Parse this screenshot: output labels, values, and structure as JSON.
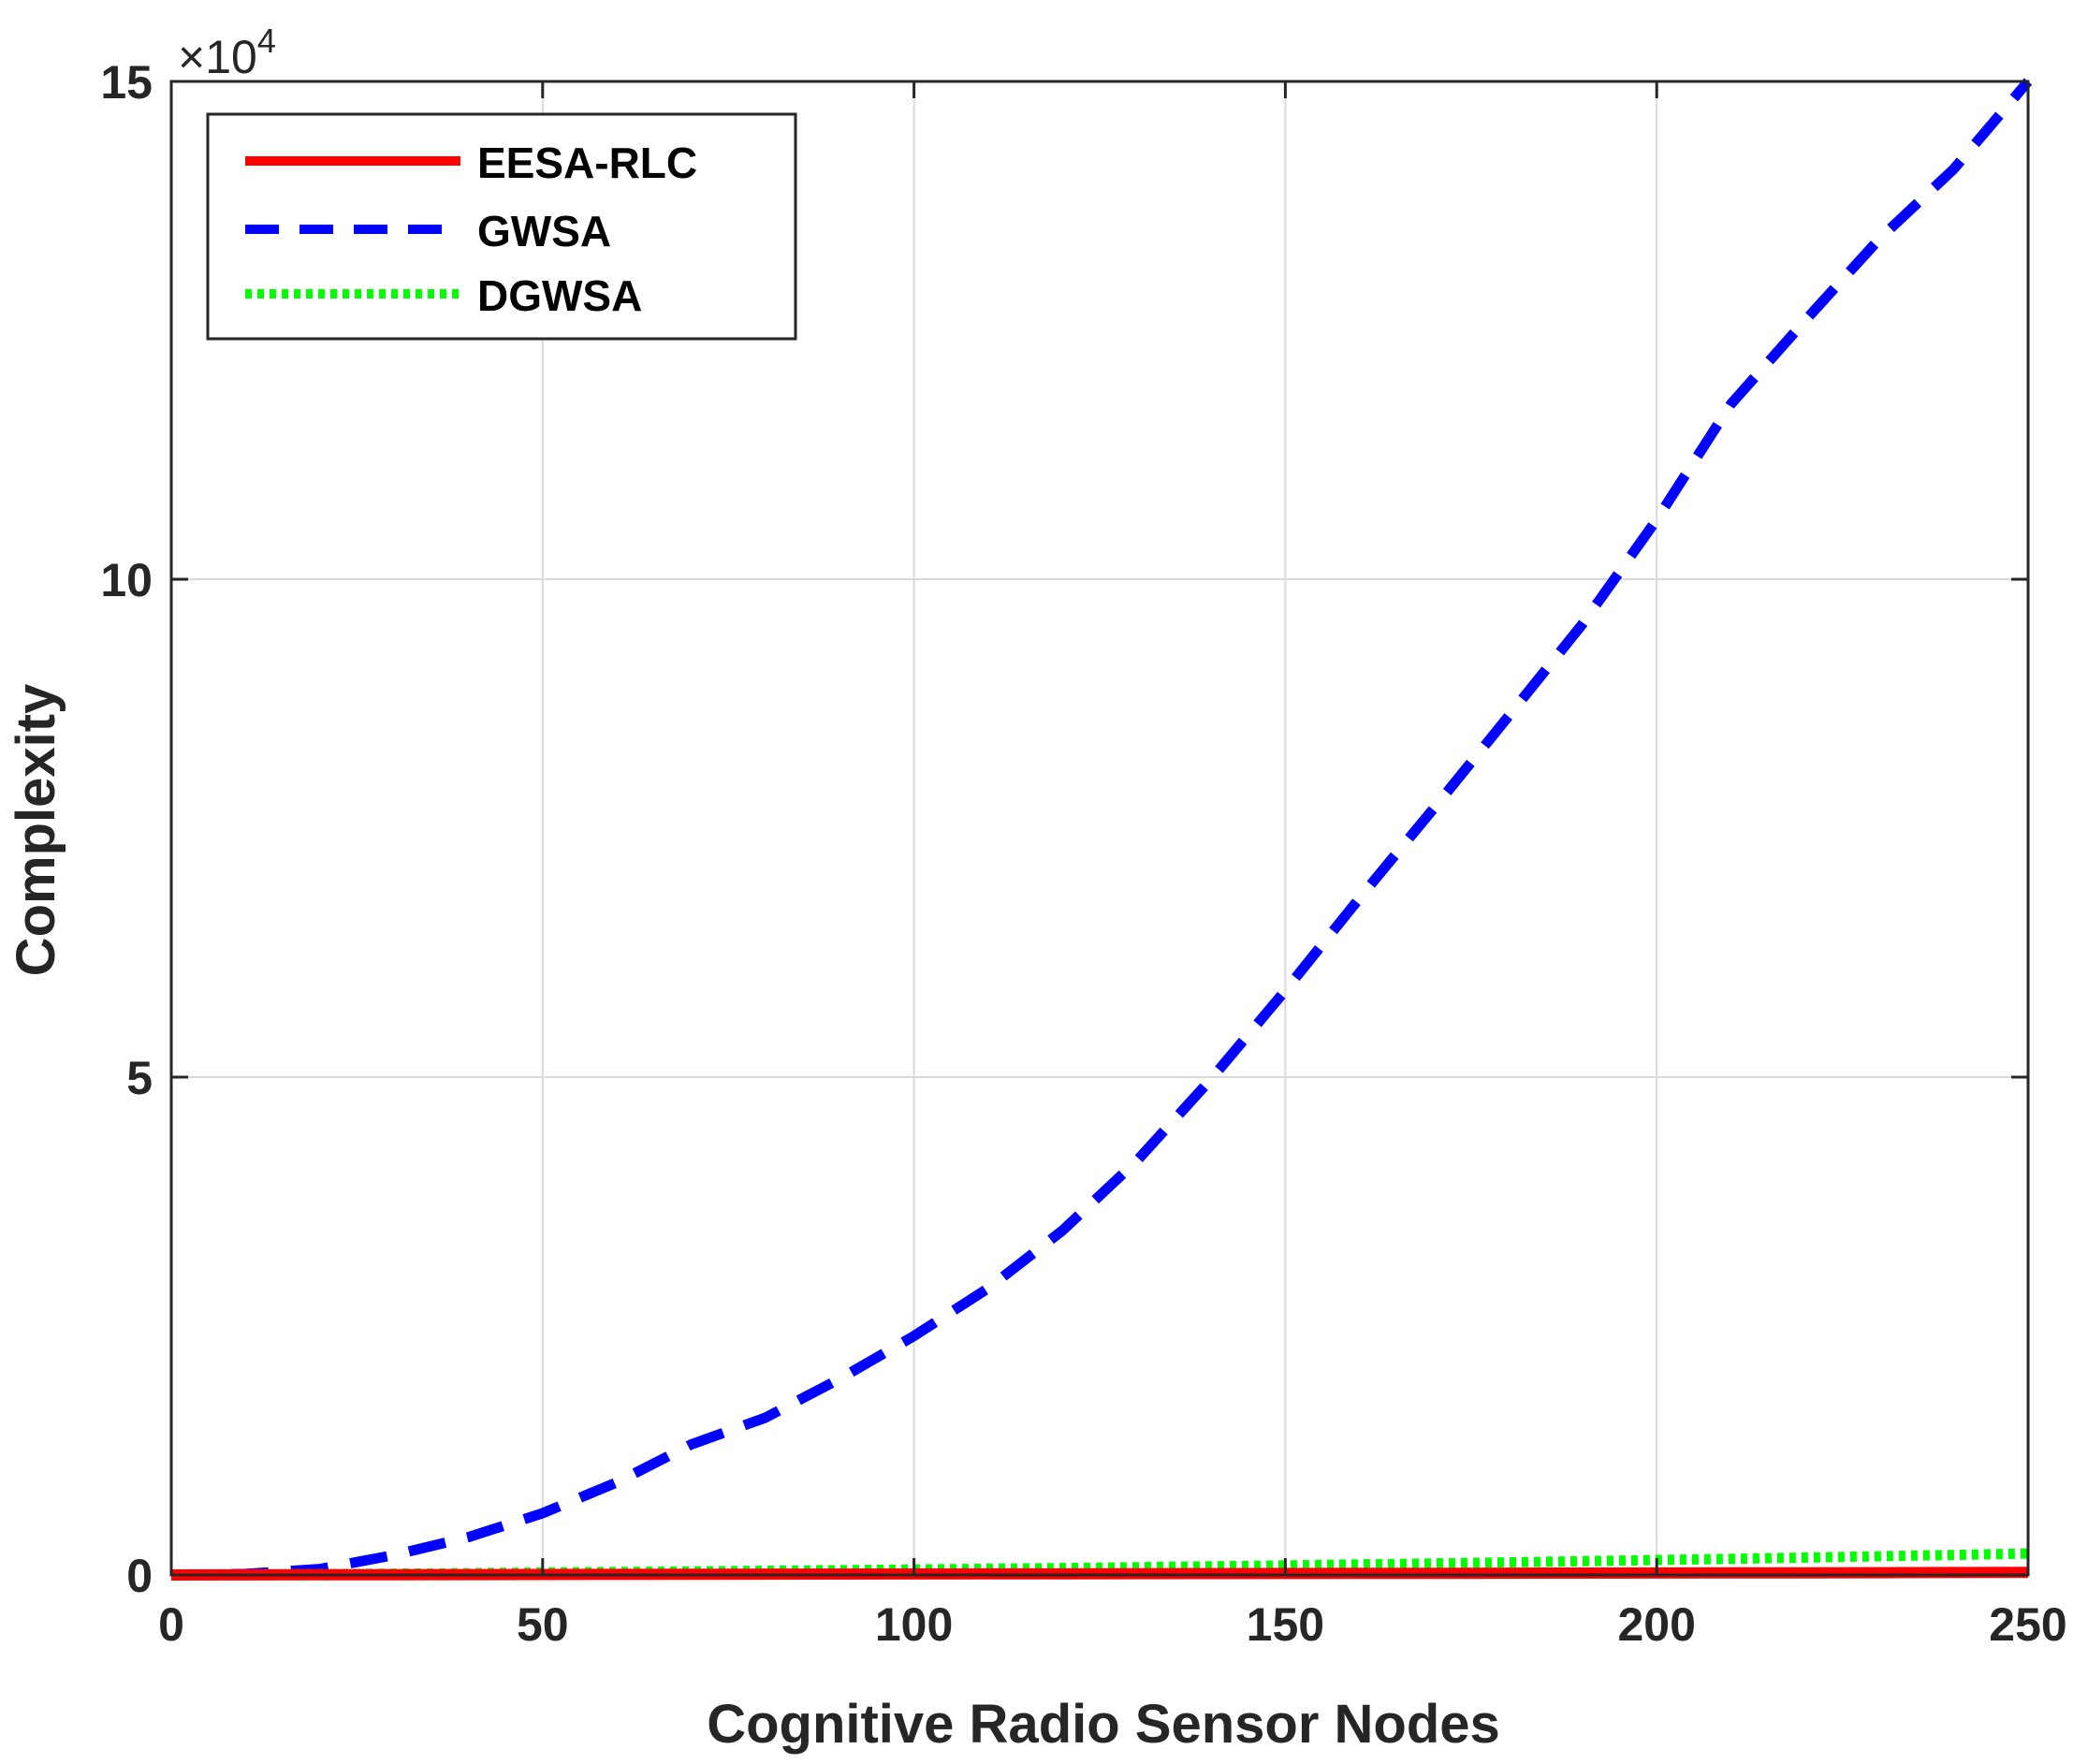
{
  "chart_data": {
    "type": "line",
    "xlabel": "Cognitive Radio Sensor Nodes",
    "ylabel": "Complexity",
    "y_multiplier_label": "×10",
    "y_multiplier_exponent": "4",
    "xlim": [
      0,
      250
    ],
    "ylim": [
      0,
      15
    ],
    "x_ticks": [
      0,
      50,
      100,
      150,
      200,
      250
    ],
    "x_tick_labels": [
      "0",
      "50",
      "100",
      "150",
      "200",
      "250"
    ],
    "y_ticks": [
      0,
      5,
      10,
      15
    ],
    "y_tick_labels": [
      "0",
      "5",
      "10",
      "15"
    ],
    "grid": true,
    "legend_position": "top-left",
    "x": [
      0,
      10,
      20,
      30,
      40,
      50,
      60,
      70,
      80,
      90,
      100,
      110,
      120,
      130,
      140,
      150,
      160,
      170,
      180,
      190,
      200,
      210,
      220,
      230,
      240,
      250
    ],
    "series": [
      {
        "name": "EESA-RLC",
        "color": "#ff0000",
        "style": "solid",
        "values": [
          0,
          0.001,
          0.002,
          0.003,
          0.004,
          0.005,
          0.006,
          0.007,
          0.008,
          0.009,
          0.01,
          0.011,
          0.012,
          0.013,
          0.014,
          0.015,
          0.016,
          0.017,
          0.018,
          0.019,
          0.02,
          0.021,
          0.022,
          0.023,
          0.024,
          0.025
        ]
      },
      {
        "name": "GWSA",
        "color": "#0000ff",
        "style": "dashed",
        "values": [
          0,
          0.01,
          0.06,
          0.2,
          0.38,
          0.62,
          0.93,
          1.31,
          1.58,
          1.97,
          2.4,
          2.88,
          3.46,
          4.16,
          4.98,
          5.87,
          6.8,
          7.7,
          8.62,
          9.55,
          10.6,
          11.76,
          12.6,
          13.42,
          14.12,
          15.0
        ]
      },
      {
        "name": "DGWSA",
        "color": "#00ff00",
        "style": "dotted",
        "values": [
          0,
          0.004,
          0.008,
          0.013,
          0.018,
          0.024,
          0.03,
          0.036,
          0.042,
          0.048,
          0.055,
          0.062,
          0.07,
          0.078,
          0.087,
          0.096,
          0.106,
          0.116,
          0.127,
          0.138,
          0.15,
          0.162,
          0.175,
          0.188,
          0.201,
          0.215
        ]
      }
    ]
  }
}
